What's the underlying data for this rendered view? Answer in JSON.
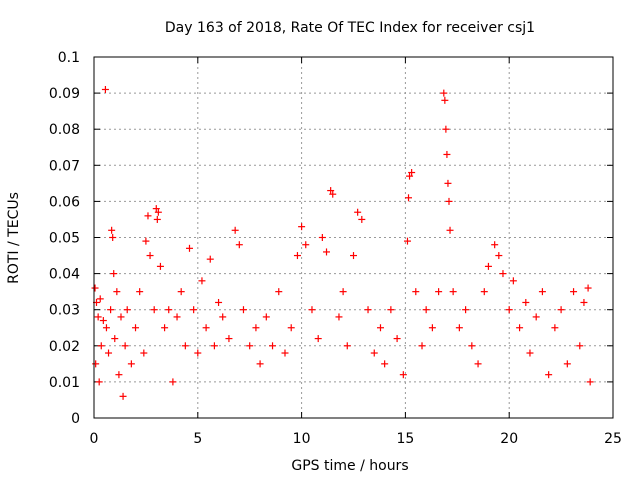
{
  "chart_data": {
    "type": "scatter",
    "title": "Day 163 of 2018, Rate Of TEC Index for receiver csj1",
    "xlabel": "GPS time / hours",
    "ylabel": "ROTI / TECUs",
    "xlim": [
      0,
      25
    ],
    "ylim": [
      0,
      0.1
    ],
    "x_ticks": [
      0,
      5,
      10,
      15,
      20,
      25
    ],
    "y_ticks": [
      0,
      0.01,
      0.02,
      0.03,
      0.04,
      0.05,
      0.06,
      0.07,
      0.08,
      0.09,
      0.1
    ],
    "x_tick_labels": [
      "0",
      "5",
      "10",
      "15",
      "20",
      "25"
    ],
    "y_tick_labels": [
      "0",
      "0.01",
      "0.02",
      "0.03",
      "0.04",
      "0.05",
      "0.06",
      "0.07",
      "0.08",
      "0.09",
      "0.1"
    ],
    "grid": true,
    "marker": "+",
    "color": "#ff0000",
    "series": [
      {
        "name": "ROTI",
        "points": [
          [
            0.05,
            0.036
          ],
          [
            0.08,
            0.015
          ],
          [
            0.12,
            0.032
          ],
          [
            0.2,
            0.028
          ],
          [
            0.25,
            0.01
          ],
          [
            0.3,
            0.033
          ],
          [
            0.35,
            0.02
          ],
          [
            0.45,
            0.027
          ],
          [
            0.55,
            0.091
          ],
          [
            0.6,
            0.025
          ],
          [
            0.7,
            0.018
          ],
          [
            0.8,
            0.03
          ],
          [
            0.85,
            0.052
          ],
          [
            0.9,
            0.05
          ],
          [
            0.95,
            0.04
          ],
          [
            1.0,
            0.022
          ],
          [
            1.1,
            0.035
          ],
          [
            1.2,
            0.012
          ],
          [
            1.3,
            0.028
          ],
          [
            1.4,
            0.006
          ],
          [
            1.5,
            0.02
          ],
          [
            1.6,
            0.03
          ],
          [
            1.8,
            0.015
          ],
          [
            2.0,
            0.025
          ],
          [
            2.2,
            0.035
          ],
          [
            2.4,
            0.018
          ],
          [
            2.5,
            0.049
          ],
          [
            2.6,
            0.056
          ],
          [
            2.7,
            0.045
          ],
          [
            2.9,
            0.03
          ],
          [
            3.0,
            0.058
          ],
          [
            3.05,
            0.055
          ],
          [
            3.1,
            0.057
          ],
          [
            3.2,
            0.042
          ],
          [
            3.4,
            0.025
          ],
          [
            3.6,
            0.03
          ],
          [
            3.8,
            0.01
          ],
          [
            4.0,
            0.028
          ],
          [
            4.2,
            0.035
          ],
          [
            4.4,
            0.02
          ],
          [
            4.6,
            0.047
          ],
          [
            4.8,
            0.03
          ],
          [
            5.0,
            0.018
          ],
          [
            5.2,
            0.038
          ],
          [
            5.4,
            0.025
          ],
          [
            5.6,
            0.044
          ],
          [
            5.8,
            0.02
          ],
          [
            6.0,
            0.032
          ],
          [
            6.2,
            0.028
          ],
          [
            6.5,
            0.022
          ],
          [
            6.8,
            0.052
          ],
          [
            7.0,
            0.048
          ],
          [
            7.2,
            0.03
          ],
          [
            7.5,
            0.02
          ],
          [
            7.8,
            0.025
          ],
          [
            8.0,
            0.015
          ],
          [
            8.3,
            0.028
          ],
          [
            8.6,
            0.02
          ],
          [
            8.9,
            0.035
          ],
          [
            9.2,
            0.018
          ],
          [
            9.5,
            0.025
          ],
          [
            9.8,
            0.045
          ],
          [
            10.0,
            0.053
          ],
          [
            10.2,
            0.048
          ],
          [
            10.5,
            0.03
          ],
          [
            10.8,
            0.022
          ],
          [
            11.0,
            0.05
          ],
          [
            11.2,
            0.046
          ],
          [
            11.4,
            0.063
          ],
          [
            11.5,
            0.062
          ],
          [
            11.8,
            0.028
          ],
          [
            12.0,
            0.035
          ],
          [
            12.2,
            0.02
          ],
          [
            12.5,
            0.045
          ],
          [
            12.7,
            0.057
          ],
          [
            12.9,
            0.055
          ],
          [
            13.2,
            0.03
          ],
          [
            13.5,
            0.018
          ],
          [
            13.8,
            0.025
          ],
          [
            14.0,
            0.015
          ],
          [
            14.3,
            0.03
          ],
          [
            14.6,
            0.022
          ],
          [
            14.9,
            0.012
          ],
          [
            15.1,
            0.049
          ],
          [
            15.15,
            0.061
          ],
          [
            15.2,
            0.067
          ],
          [
            15.3,
            0.068
          ],
          [
            15.5,
            0.035
          ],
          [
            15.8,
            0.02
          ],
          [
            16.0,
            0.03
          ],
          [
            16.3,
            0.025
          ],
          [
            16.6,
            0.035
          ],
          [
            16.85,
            0.09
          ],
          [
            16.9,
            0.088
          ],
          [
            16.95,
            0.08
          ],
          [
            17.0,
            0.073
          ],
          [
            17.05,
            0.065
          ],
          [
            17.1,
            0.06
          ],
          [
            17.15,
            0.052
          ],
          [
            17.3,
            0.035
          ],
          [
            17.6,
            0.025
          ],
          [
            17.9,
            0.03
          ],
          [
            18.2,
            0.02
          ],
          [
            18.5,
            0.015
          ],
          [
            18.8,
            0.035
          ],
          [
            19.0,
            0.042
          ],
          [
            19.3,
            0.048
          ],
          [
            19.5,
            0.045
          ],
          [
            19.7,
            0.04
          ],
          [
            20.0,
            0.03
          ],
          [
            20.2,
            0.038
          ],
          [
            20.5,
            0.025
          ],
          [
            20.8,
            0.032
          ],
          [
            21.0,
            0.018
          ],
          [
            21.3,
            0.028
          ],
          [
            21.6,
            0.035
          ],
          [
            21.9,
            0.012
          ],
          [
            22.2,
            0.025
          ],
          [
            22.5,
            0.03
          ],
          [
            22.8,
            0.015
          ],
          [
            23.1,
            0.035
          ],
          [
            23.4,
            0.02
          ],
          [
            23.6,
            0.032
          ],
          [
            23.8,
            0.036
          ],
          [
            23.9,
            0.01
          ]
        ]
      }
    ]
  }
}
